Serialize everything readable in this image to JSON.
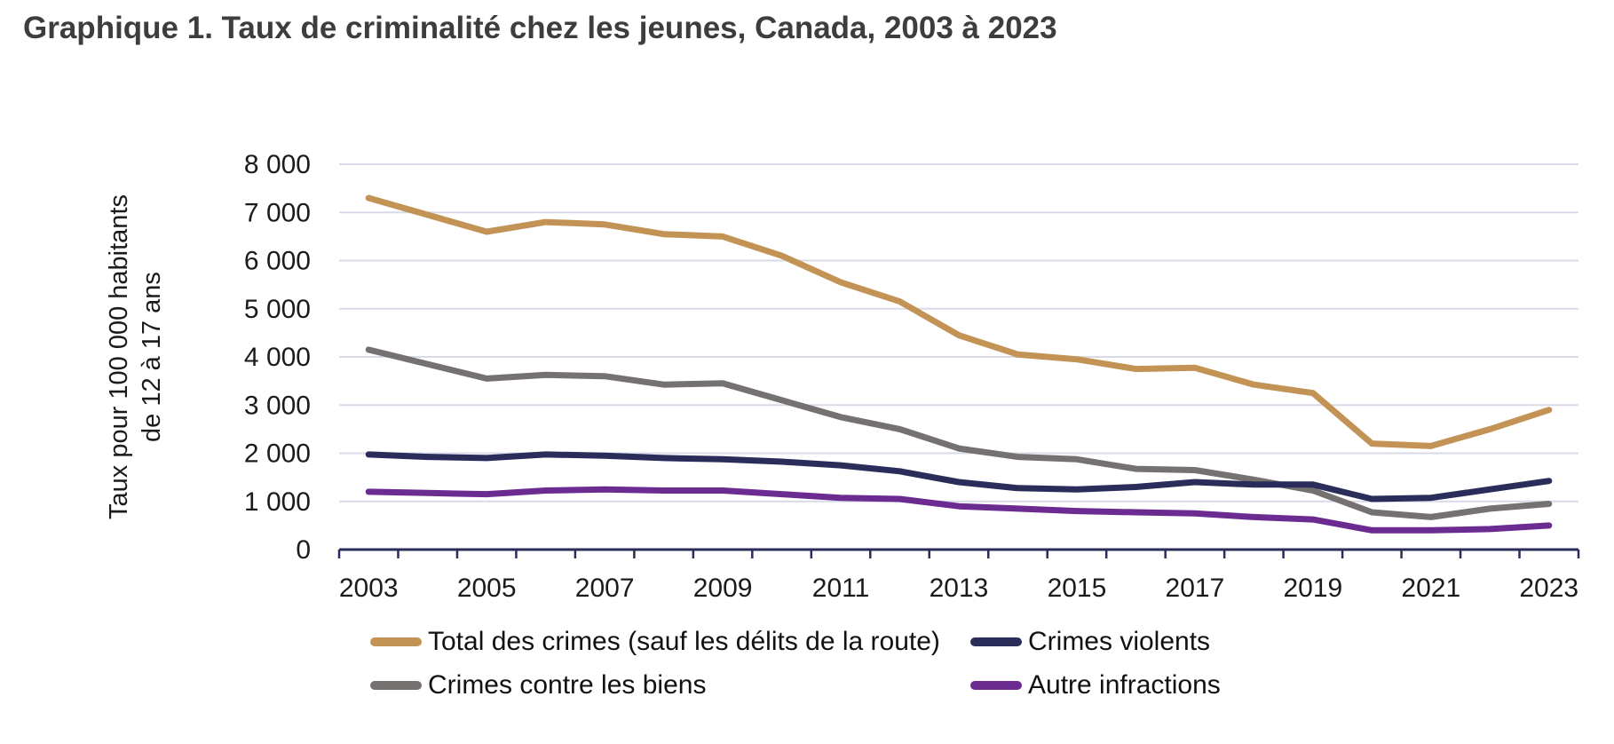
{
  "header": {
    "title": "Graphique 1. Taux de criminalité chez les jeunes, Canada, 2003 à 2023"
  },
  "chart_data": {
    "type": "line",
    "title": "Graphique 1. Taux de criminalité chez les jeunes, Canada, 2003 à 2023",
    "ylabel_line1": "Taux pour 100 000 habitants",
    "ylabel_line2": "de 12 à 17 ans",
    "xlabel": "",
    "x": [
      2003,
      2004,
      2005,
      2006,
      2007,
      2008,
      2009,
      2010,
      2011,
      2012,
      2013,
      2014,
      2015,
      2016,
      2017,
      2018,
      2019,
      2020,
      2021,
      2022,
      2023
    ],
    "x_tick_labels": [
      "2003",
      "2005",
      "2007",
      "2009",
      "2011",
      "2013",
      "2015",
      "2017",
      "2019",
      "2021",
      "2023"
    ],
    "y_ticks": [
      0,
      1000,
      2000,
      3000,
      4000,
      5000,
      6000,
      7000,
      8000
    ],
    "y_tick_labels": [
      "0",
      "1 000",
      "2 000",
      "3 000",
      "4 000",
      "5 000",
      "6 000",
      "7 000",
      "8 000"
    ],
    "ylim": [
      0,
      8000
    ],
    "grid": "horizontal-only",
    "legend_position": "bottom",
    "colors": {
      "axis": "#2a2d5a",
      "gridline": "#d9dae8",
      "tick_text": "#1b1b1b",
      "title_text": "#3d3d3d"
    },
    "series": [
      {
        "name": "Total des crimes (sauf les délits de la route)",
        "color": "#c39355",
        "values": [
          7300,
          6950,
          6600,
          6800,
          6750,
          6550,
          6500,
          6100,
          5550,
          5150,
          4450,
          4050,
          3950,
          3750,
          3775,
          3425,
          3250,
          2200,
          2150,
          2500,
          2900
        ]
      },
      {
        "name": "Crimes contre les biens",
        "color": "#767171",
        "values": [
          4150,
          3850,
          3550,
          3625,
          3600,
          3425,
          3450,
          3100,
          2750,
          2500,
          2100,
          1925,
          1875,
          1675,
          1650,
          1450,
          1225,
          775,
          675,
          850,
          950
        ]
      },
      {
        "name": "Crimes violents",
        "color": "#2a2d5a",
        "values": [
          1975,
          1925,
          1900,
          1975,
          1950,
          1900,
          1875,
          1825,
          1750,
          1625,
          1400,
          1275,
          1250,
          1300,
          1400,
          1350,
          1350,
          1050,
          1075,
          1250,
          1425
        ]
      },
      {
        "name": "Autre infractions",
        "color": "#6c2b91",
        "values": [
          1200,
          1175,
          1150,
          1225,
          1250,
          1225,
          1225,
          1150,
          1075,
          1050,
          900,
          850,
          800,
          775,
          750,
          675,
          625,
          400,
          400,
          425,
          500
        ]
      }
    ]
  }
}
